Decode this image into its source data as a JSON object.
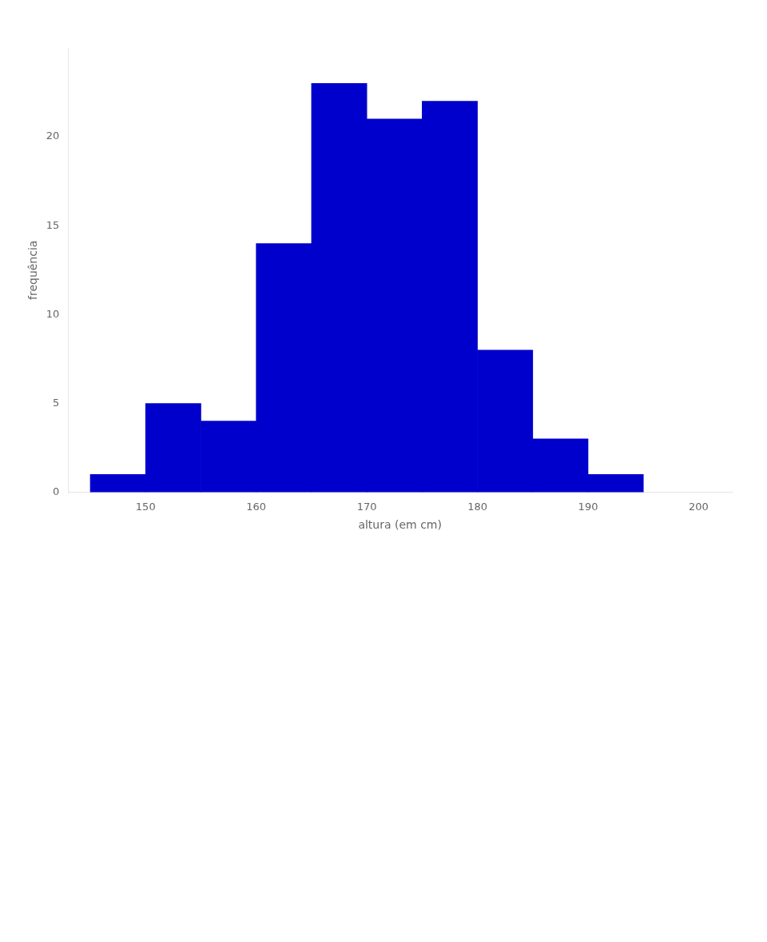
{
  "chart_data": {
    "type": "histogram",
    "bins": [
      145,
      150,
      155,
      160,
      165,
      170,
      175,
      180,
      185,
      190,
      195
    ],
    "values": [
      1,
      5,
      4,
      14,
      23,
      21,
      22,
      8,
      3,
      1
    ],
    "color": "#0000cc",
    "xlabel": "altura (em cm)",
    "ylabel": "frequência",
    "xlim": [
      143,
      203
    ],
    "ylim": [
      0,
      25
    ],
    "xticks": [
      150,
      160,
      170,
      180,
      190,
      200
    ],
    "yticks": [
      0,
      5,
      10,
      15,
      20
    ],
    "grid": false,
    "legend": false
  }
}
